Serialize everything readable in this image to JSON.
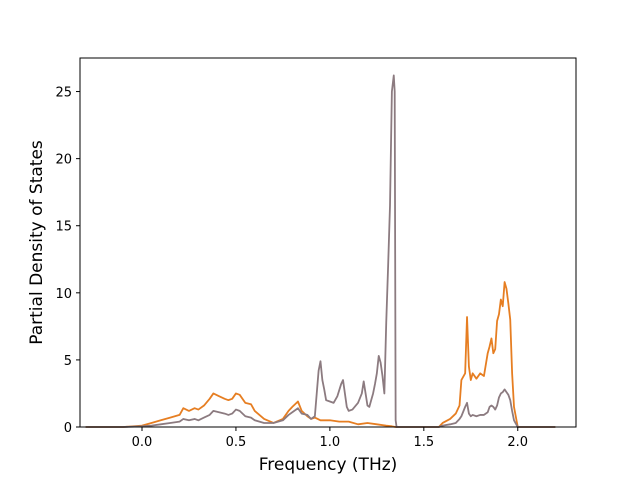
{
  "chart_data": {
    "type": "line",
    "title": "",
    "xlabel": "Frequency (THz)",
    "ylabel": "Partial Density of States",
    "xlim": [
      -0.33,
      2.31
    ],
    "ylim": [
      0,
      27.5
    ],
    "x_ticks": [
      0.0,
      0.5,
      1.0,
      1.5,
      2.0
    ],
    "x_tick_labels": [
      "0.0",
      "0.5",
      "1.0",
      "1.5",
      "2.0"
    ],
    "y_ticks": [
      0,
      5,
      10,
      15,
      20,
      25
    ],
    "y_tick_labels": [
      "0",
      "5",
      "10",
      "15",
      "20",
      "25"
    ],
    "grid": false,
    "legend": "none",
    "series": [
      {
        "color": "#e67e22",
        "x": [
          -0.3,
          -0.1,
          0.0,
          0.05,
          0.1,
          0.15,
          0.2,
          0.22,
          0.25,
          0.28,
          0.3,
          0.33,
          0.36,
          0.38,
          0.41,
          0.44,
          0.46,
          0.48,
          0.5,
          0.52,
          0.55,
          0.58,
          0.6,
          0.65,
          0.7,
          0.75,
          0.78,
          0.8,
          0.83,
          0.85,
          0.88,
          0.9,
          0.92,
          0.95,
          1.0,
          1.05,
          1.1,
          1.15,
          1.2,
          1.25,
          1.3,
          1.33,
          1.35,
          1.36,
          1.4,
          1.5,
          1.58,
          1.6,
          1.64,
          1.67,
          1.69,
          1.7,
          1.72,
          1.73,
          1.74,
          1.75,
          1.76,
          1.78,
          1.8,
          1.82,
          1.84,
          1.85,
          1.86,
          1.87,
          1.88,
          1.89,
          1.9,
          1.91,
          1.92,
          1.93,
          1.94,
          1.95,
          1.96,
          1.97,
          1.98,
          2.0,
          2.2
        ],
        "y": [
          0,
          0,
          0.1,
          0.3,
          0.5,
          0.7,
          0.9,
          1.4,
          1.2,
          1.4,
          1.3,
          1.6,
          2.1,
          2.5,
          2.3,
          2.1,
          2.0,
          2.1,
          2.5,
          2.4,
          1.8,
          1.7,
          1.2,
          0.6,
          0.3,
          0.6,
          1.2,
          1.5,
          1.9,
          1.2,
          0.8,
          0.6,
          0.7,
          0.5,
          0.5,
          0.4,
          0.4,
          0.2,
          0.3,
          0.2,
          0.1,
          0.05,
          0,
          0,
          0,
          0,
          0,
          0.3,
          0.6,
          1.0,
          1.6,
          3.5,
          4.0,
          8.2,
          4.5,
          3.5,
          4.0,
          3.6,
          4.0,
          3.8,
          5.5,
          6.0,
          6.6,
          5.5,
          5.8,
          7.9,
          8.4,
          9.5,
          9.0,
          10.8,
          10.3,
          9.2,
          8.0,
          4.0,
          1.5,
          0,
          0
        ]
      },
      {
        "color": "#8c7b80",
        "x": [
          -0.3,
          -0.1,
          0.0,
          0.05,
          0.1,
          0.15,
          0.2,
          0.22,
          0.25,
          0.28,
          0.3,
          0.33,
          0.36,
          0.38,
          0.41,
          0.44,
          0.46,
          0.48,
          0.5,
          0.52,
          0.55,
          0.58,
          0.6,
          0.65,
          0.7,
          0.75,
          0.78,
          0.8,
          0.83,
          0.85,
          0.88,
          0.9,
          0.92,
          0.93,
          0.94,
          0.95,
          0.96,
          0.97,
          0.98,
          1.0,
          1.02,
          1.04,
          1.06,
          1.07,
          1.08,
          1.09,
          1.1,
          1.12,
          1.15,
          1.17,
          1.18,
          1.19,
          1.2,
          1.21,
          1.22,
          1.23,
          1.24,
          1.25,
          1.26,
          1.27,
          1.28,
          1.29,
          1.3,
          1.31,
          1.32,
          1.33,
          1.34,
          1.345,
          1.35,
          1.355,
          1.36,
          1.4,
          1.5,
          1.58,
          1.6,
          1.64,
          1.67,
          1.69,
          1.7,
          1.72,
          1.73,
          1.74,
          1.75,
          1.76,
          1.78,
          1.8,
          1.82,
          1.84,
          1.85,
          1.86,
          1.87,
          1.88,
          1.89,
          1.9,
          1.91,
          1.92,
          1.93,
          1.94,
          1.95,
          1.96,
          1.97,
          1.98,
          2.0,
          2.2
        ],
        "y": [
          0,
          0,
          0.05,
          0.1,
          0.2,
          0.3,
          0.4,
          0.6,
          0.5,
          0.6,
          0.5,
          0.7,
          0.9,
          1.2,
          1.1,
          1.0,
          0.9,
          1.0,
          1.3,
          1.2,
          0.8,
          0.7,
          0.5,
          0.3,
          0.3,
          0.5,
          0.9,
          1.1,
          1.4,
          1.0,
          0.9,
          0.6,
          0.8,
          2.5,
          4.2,
          4.9,
          3.5,
          2.8,
          2.0,
          1.9,
          1.8,
          2.3,
          3.2,
          3.5,
          2.5,
          1.5,
          1.2,
          1.3,
          1.8,
          2.5,
          3.4,
          2.5,
          1.6,
          1.5,
          2.0,
          2.5,
          3.2,
          4.0,
          5.3,
          4.8,
          3.8,
          2.5,
          7.8,
          12.0,
          16.5,
          25.0,
          26.2,
          25.0,
          0.5,
          0,
          0,
          0,
          0,
          0,
          0.1,
          0.2,
          0.3,
          0.6,
          0.8,
          1.5,
          1.8,
          1.0,
          0.8,
          0.9,
          0.8,
          0.9,
          0.9,
          1.1,
          1.5,
          1.6,
          1.5,
          1.3,
          1.6,
          2.2,
          2.5,
          2.6,
          2.8,
          2.6,
          2.4,
          2.0,
          1.2,
          0.5,
          0,
          0
        ]
      }
    ]
  }
}
